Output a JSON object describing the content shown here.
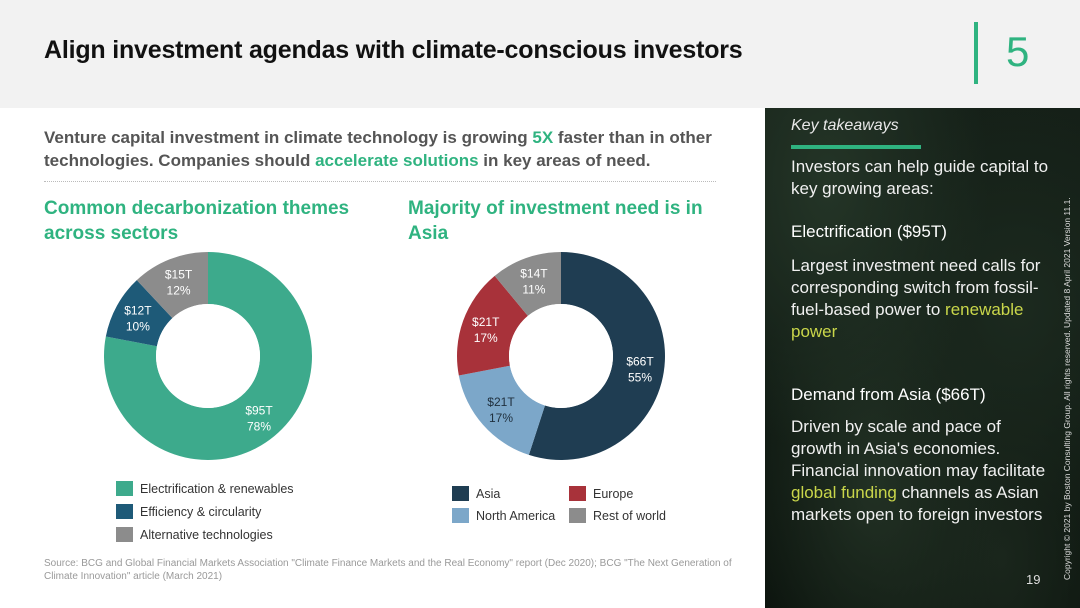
{
  "header": {
    "title": "Align investment agendas with climate-conscious investors",
    "page_number": "5"
  },
  "intro": {
    "part1": "Venture capital investment in climate technology is growing ",
    "highlight1": "5X",
    "part2": " faster than in other technologies. Companies should ",
    "highlight2": "accelerate solutions",
    "part3": " in key areas of need."
  },
  "left_title": "Common decarbonization themes across sectors",
  "right_title": "Majority of investment need is in Asia",
  "chart_data": [
    {
      "type": "pie",
      "donut": true,
      "title": "Common decarbonization themes across sectors",
      "categories": [
        "Electrification & renewables",
        "Efficiency & circularity",
        "Alternative technologies"
      ],
      "values": [
        78,
        10,
        12
      ],
      "value_labels": [
        "$95T",
        "$12T",
        "$15T"
      ],
      "percent_labels": [
        "78%",
        "10%",
        "12%"
      ],
      "colors": [
        "#3daa8c",
        "#1e5a78",
        "#8c8c8c"
      ],
      "legend": [
        "Electrification & renewables",
        "Efficiency & circularity",
        "Alternative technologies"
      ],
      "legend_position": "bottom"
    },
    {
      "type": "pie",
      "donut": true,
      "title": "Majority of investment need is in Asia",
      "categories": [
        "Asia",
        "North America",
        "Europe",
        "Rest of world"
      ],
      "values": [
        55,
        17,
        17,
        11
      ],
      "value_labels": [
        "$66T",
        "$21T",
        "$21T",
        "$14T"
      ],
      "percent_labels": [
        "55%",
        "17%",
        "17%",
        "11%"
      ],
      "colors": [
        "#1f3d52",
        "#7ca7c9",
        "#a8323a",
        "#8c8c8c"
      ],
      "legend": [
        "Asia",
        "Europe",
        "North America",
        "Rest of world"
      ],
      "legend_position": "bottom"
    }
  ],
  "source": "Source: BCG and Global Financial Markets Association \"Climate Finance Markets and the Real Economy\" report (Dec 2020); BCG \"The Next Generation of Climate Innovation\" article (March 2021)",
  "sidebar": {
    "label": "Key takeaways",
    "intro": "Investors can help guide capital to key growing areas:",
    "heading1": "Electrification ($95T)",
    "text1": "Largest investment need calls for corresponding switch from fossil-fuel-based power to ",
    "text1_highlight": "renewable power",
    "heading2": "Demand from Asia ($66T)",
    "text2a": "Driven by scale and pace of growth in Asia's economies. Financial innovation may facilitate ",
    "text2_highlight": "global funding",
    "text2b": " channels as Asian markets open to foreign investors",
    "copyright": "Copyright © 2021 by Boston Consulting Group. All rights reserved. Updated 8 April 2021 Version 11.1.",
    "page": "19"
  }
}
